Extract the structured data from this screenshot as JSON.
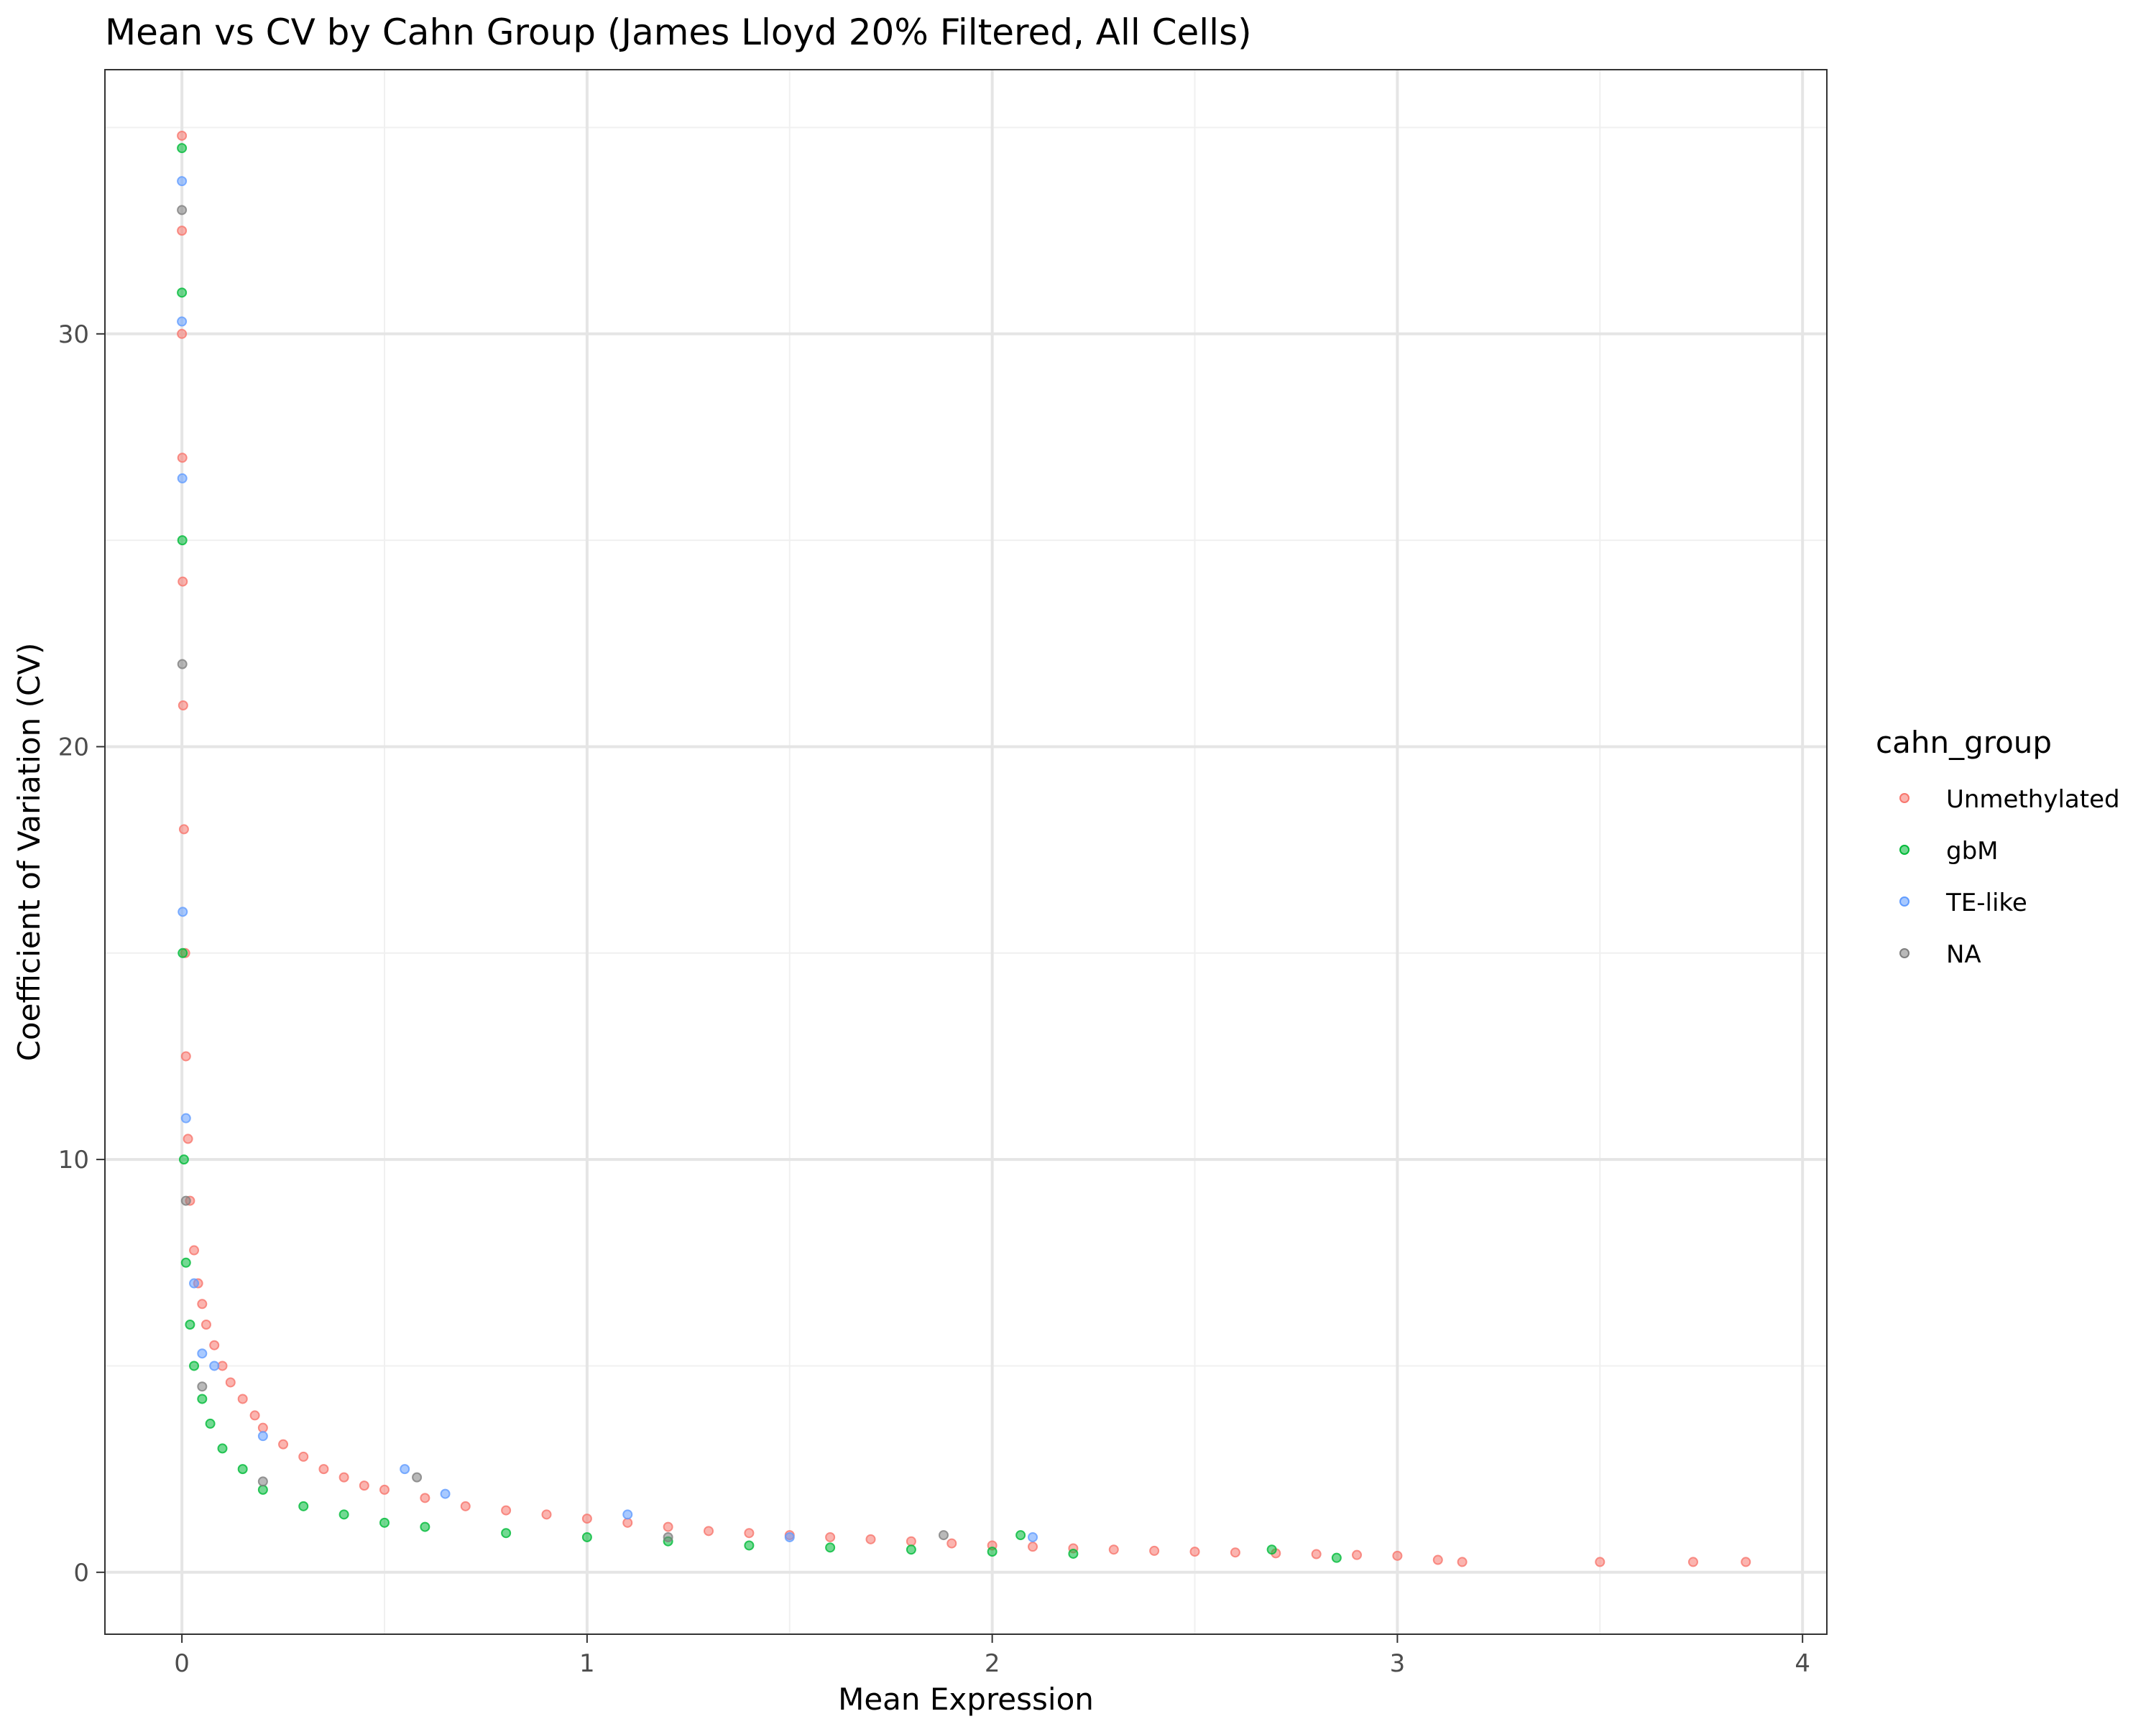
{
  "chart_data": {
    "type": "scatter",
    "title": "Mean vs CV by Cahn Group (James Lloyd 20% Filtered, All Cells)",
    "xlabel": "Mean Expression",
    "ylabel": "Coefficient of Variation (CV)",
    "xlim": [
      -0.19,
      4.06
    ],
    "ylim": [
      -1.5,
      36.4
    ],
    "x_ticks": [
      0,
      1,
      2,
      3,
      4
    ],
    "y_ticks": [
      0,
      10,
      20,
      30
    ],
    "x_tick_labels": [
      "0",
      "1",
      "2",
      "3",
      "4"
    ],
    "y_tick_labels": [
      "0",
      "10",
      "20",
      "30"
    ],
    "grid": true,
    "legend": {
      "title": "cahn_group",
      "position": "right",
      "entries": [
        "Unmethylated",
        "gbM",
        "TE-like",
        "NA"
      ]
    },
    "series": [
      {
        "name": "Unmethylated",
        "color": "#F8766D",
        "x": [
          0.0,
          0.0,
          0.0,
          0.001,
          0.002,
          0.003,
          0.005,
          0.008,
          0.01,
          0.015,
          0.02,
          0.03,
          0.04,
          0.05,
          0.06,
          0.08,
          0.1,
          0.12,
          0.15,
          0.18,
          0.2,
          0.25,
          0.3,
          0.35,
          0.4,
          0.45,
          0.5,
          0.6,
          0.7,
          0.8,
          0.9,
          1.0,
          1.1,
          1.2,
          1.3,
          1.4,
          1.5,
          1.6,
          1.7,
          1.8,
          1.9,
          2.0,
          2.1,
          2.2,
          2.3,
          2.4,
          2.5,
          2.6,
          2.7,
          2.8,
          2.9,
          3.0,
          3.1,
          3.16,
          3.5,
          3.73,
          3.86
        ],
        "y": [
          34.8,
          32.5,
          30.0,
          27.0,
          24.0,
          21.0,
          18.0,
          15.0,
          12.5,
          10.5,
          9.0,
          7.8,
          7.0,
          6.5,
          6.0,
          5.5,
          5.0,
          4.6,
          4.2,
          3.8,
          3.5,
          3.1,
          2.8,
          2.5,
          2.3,
          2.1,
          2.0,
          1.8,
          1.6,
          1.5,
          1.4,
          1.3,
          1.2,
          1.1,
          1.0,
          0.95,
          0.9,
          0.85,
          0.8,
          0.75,
          0.7,
          0.65,
          0.62,
          0.58,
          0.55,
          0.52,
          0.5,
          0.48,
          0.46,
          0.44,
          0.42,
          0.4,
          0.3,
          0.25,
          0.25,
          0.25,
          0.25
        ]
      },
      {
        "name": "gbM",
        "color": "#00BA38",
        "x": [
          0.0,
          0.0,
          0.001,
          0.002,
          0.005,
          0.01,
          0.02,
          0.03,
          0.05,
          0.07,
          0.1,
          0.15,
          0.2,
          0.3,
          0.4,
          0.5,
          0.6,
          0.8,
          1.0,
          1.2,
          1.4,
          1.6,
          1.8,
          2.0,
          2.07,
          2.2,
          2.69,
          2.85
        ],
        "y": [
          34.5,
          31.0,
          25.0,
          15.0,
          10.0,
          7.5,
          6.0,
          5.0,
          4.2,
          3.6,
          3.0,
          2.5,
          2.0,
          1.6,
          1.4,
          1.2,
          1.1,
          0.95,
          0.85,
          0.75,
          0.65,
          0.6,
          0.55,
          0.5,
          0.9,
          0.45,
          0.55,
          0.35
        ]
      },
      {
        "name": "TE-like",
        "color": "#619CFF",
        "x": [
          0.0,
          0.0,
          0.001,
          0.002,
          0.01,
          0.03,
          0.05,
          0.08,
          0.2,
          0.55,
          0.65,
          1.1,
          1.5,
          2.1
        ],
        "y": [
          33.7,
          30.3,
          26.5,
          16.0,
          11.0,
          7.0,
          5.3,
          5.0,
          3.3,
          2.5,
          1.9,
          1.4,
          0.85,
          0.85
        ]
      },
      {
        "name": "NA",
        "color": "#7F7F7F",
        "x": [
          0.0,
          0.001,
          0.01,
          0.05,
          0.2,
          0.58,
          1.2,
          1.88
        ],
        "y": [
          33.0,
          22.0,
          9.0,
          4.5,
          2.2,
          2.3,
          0.85,
          0.9
        ]
      }
    ]
  }
}
